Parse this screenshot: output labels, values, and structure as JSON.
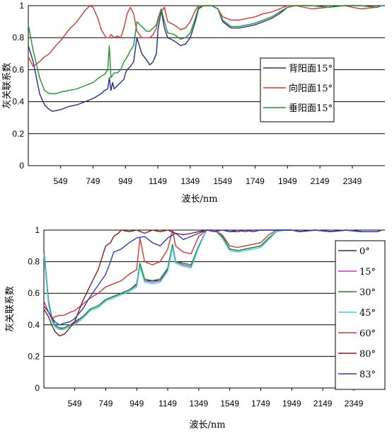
{
  "chart_data": [
    {
      "type": "line",
      "xlabel": "波长/nm",
      "ylabel": "灰关联系数",
      "xlim": [
        350,
        2550
      ],
      "ylim": [
        0,
        1
      ],
      "xticks": [
        "549",
        "749",
        "949",
        "1149",
        "1349",
        "1549",
        "1749",
        "1949",
        "2149",
        "2349"
      ],
      "yticks": [
        "0",
        "0.2",
        "0.4",
        "0.6",
        "0.8",
        "1"
      ],
      "grid": true,
      "legend": "center-right",
      "series": [
        {
          "name": "背阳面15°",
          "color": "#1f2e8f",
          "x": [
            350,
            380,
            420,
            450,
            480,
            500,
            549,
            600,
            650,
            700,
            750,
            800,
            820,
            840,
            850,
            860,
            870,
            880,
            900,
            920,
            940,
            950,
            960,
            980,
            1000,
            1020,
            1050,
            1080,
            1100,
            1120,
            1140,
            1150,
            1170,
            1190,
            1210,
            1250,
            1290,
            1320,
            1349,
            1380,
            1400,
            1430,
            1480,
            1520,
            1549,
            1600,
            1650,
            1700,
            1749,
            1800,
            1850,
            1900,
            1949,
            2000,
            2100,
            2200,
            2300,
            2400,
            2500,
            2530
          ],
          "y": [
            0.75,
            0.65,
            0.45,
            0.38,
            0.35,
            0.34,
            0.35,
            0.37,
            0.38,
            0.4,
            0.42,
            0.45,
            0.47,
            0.48,
            0.55,
            0.47,
            0.52,
            0.48,
            0.5,
            0.52,
            0.54,
            0.58,
            0.6,
            0.62,
            0.65,
            0.8,
            0.7,
            0.66,
            0.63,
            0.65,
            0.7,
            0.85,
            0.97,
            0.86,
            0.8,
            0.78,
            0.75,
            0.76,
            0.8,
            0.9,
            0.98,
            1.0,
            1.0,
            0.98,
            0.9,
            0.86,
            0.86,
            0.87,
            0.88,
            0.9,
            0.92,
            0.95,
            0.99,
            1.0,
            1.0,
            0.99,
            1.0,
            1.0,
            0.99,
            1.0
          ]
        },
        {
          "name": "向阳面15°",
          "color": "#e8322c",
          "x": [
            350,
            380,
            420,
            450,
            480,
            520,
            549,
            600,
            650,
            700,
            730,
            749,
            780,
            800,
            830,
            850,
            860,
            880,
            900,
            920,
            940,
            960,
            980,
            1000,
            1020,
            1050,
            1080,
            1100,
            1120,
            1140,
            1160,
            1190,
            1210,
            1250,
            1290,
            1320,
            1349,
            1380,
            1400,
            1430,
            1480,
            1520,
            1549,
            1600,
            1650,
            1700,
            1749,
            1800,
            1850,
            1900,
            1949,
            2000,
            2100,
            2200,
            2300,
            2400,
            2500,
            2530
          ],
          "y": [
            0.68,
            0.62,
            0.65,
            0.68,
            0.7,
            0.75,
            0.78,
            0.85,
            0.9,
            0.97,
            1.0,
            0.99,
            0.92,
            0.85,
            0.8,
            0.8,
            0.82,
            0.8,
            0.81,
            0.8,
            0.86,
            0.95,
            0.99,
            0.95,
            0.84,
            0.8,
            0.8,
            0.8,
            0.82,
            0.86,
            0.95,
            0.99,
            0.9,
            0.88,
            0.85,
            0.86,
            0.9,
            0.97,
            1.0,
            1.0,
            1.0,
            0.98,
            0.93,
            0.91,
            0.91,
            0.92,
            0.93,
            0.95,
            0.96,
            0.98,
            1.0,
            1.0,
            0.98,
            0.99,
            1.0,
            0.98,
            0.99,
            1.0
          ]
        },
        {
          "name": "垂阳面15°",
          "color": "#1a9a2a",
          "x": [
            350,
            380,
            420,
            450,
            480,
            520,
            549,
            600,
            650,
            700,
            750,
            800,
            820,
            840,
            850,
            860,
            880,
            900,
            920,
            940,
            960,
            980,
            1000,
            1020,
            1050,
            1080,
            1100,
            1120,
            1140,
            1150,
            1170,
            1190,
            1210,
            1250,
            1290,
            1320,
            1349,
            1380,
            1400,
            1430,
            1480,
            1520,
            1549,
            1600,
            1650,
            1700,
            1749,
            1800,
            1850,
            1900,
            1949,
            2000,
            2100,
            2200,
            2300,
            2400,
            2500,
            2530
          ],
          "y": [
            0.88,
            0.72,
            0.55,
            0.47,
            0.45,
            0.45,
            0.46,
            0.47,
            0.48,
            0.5,
            0.52,
            0.56,
            0.57,
            0.6,
            0.75,
            0.55,
            0.58,
            0.58,
            0.6,
            0.65,
            0.68,
            0.72,
            0.75,
            0.9,
            0.87,
            0.84,
            0.84,
            0.86,
            0.88,
            0.92,
            0.98,
            0.9,
            0.83,
            0.82,
            0.79,
            0.8,
            0.83,
            0.92,
            0.99,
            1.0,
            1.0,
            0.98,
            0.91,
            0.87,
            0.87,
            0.88,
            0.89,
            0.91,
            0.93,
            0.96,
            0.99,
            1.0,
            1.0,
            0.99,
            1.0,
            1.0,
            0.99,
            1.0
          ]
        }
      ]
    },
    {
      "type": "line",
      "xlabel": "波长/nm",
      "ylabel": "灰关联系数",
      "xlim": [
        350,
        2550
      ],
      "ylim": [
        0,
        1
      ],
      "xticks": [
        "549",
        "749",
        "949",
        "1149",
        "1349",
        "1549",
        "1749",
        "1949",
        "2149",
        "2349"
      ],
      "yticks": [
        "0",
        "0.2",
        "0.4",
        "0.6",
        "0.8",
        "1"
      ],
      "grid": true,
      "legend": "right",
      "series": [
        {
          "name": "0°",
          "color": "#1f2e6b",
          "x": [
            350,
            380,
            400,
            420,
            450,
            480,
            520,
            549,
            600,
            650,
            700,
            749,
            800,
            850,
            900,
            949,
            970,
            1000,
            1050,
            1100,
            1149,
            1180,
            1200,
            1250,
            1300,
            1349,
            1400,
            1450,
            1500,
            1549,
            1600,
            1650,
            1700,
            1749,
            1800,
            1850,
            1900,
            1949,
            2000,
            2100,
            2200,
            2300,
            2400,
            2500,
            2530
          ],
          "y": [
            0.88,
            0.55,
            0.45,
            0.4,
            0.38,
            0.38,
            0.4,
            0.41,
            0.45,
            0.5,
            0.52,
            0.56,
            0.58,
            0.6,
            0.62,
            0.65,
            0.78,
            0.68,
            0.68,
            0.68,
            0.75,
            0.9,
            0.8,
            0.78,
            0.77,
            0.9,
            1.0,
            1.0,
            0.96,
            0.88,
            0.87,
            0.88,
            0.89,
            0.9,
            0.95,
            0.99,
            1.0,
            1.0,
            0.99,
            1.0,
            0.99,
            1.0,
            0.99,
            0.99,
            1.0
          ]
        },
        {
          "name": "15°",
          "color": "#cc33cc",
          "x": [
            350,
            380,
            400,
            420,
            450,
            480,
            520,
            549,
            600,
            650,
            700,
            749,
            800,
            850,
            900,
            949,
            970,
            1000,
            1050,
            1100,
            1149,
            1180,
            1200,
            1250,
            1300,
            1349,
            1400,
            1450,
            1500,
            1549,
            1600,
            1650,
            1700,
            1749,
            1800,
            1850,
            1900,
            1949,
            2000,
            2100,
            2200,
            2300,
            2400,
            2500,
            2530
          ],
          "y": [
            0.87,
            0.54,
            0.44,
            0.39,
            0.37,
            0.38,
            0.4,
            0.41,
            0.45,
            0.5,
            0.52,
            0.56,
            0.58,
            0.6,
            0.62,
            0.65,
            0.78,
            0.68,
            0.67,
            0.68,
            0.75,
            0.9,
            0.8,
            0.78,
            0.77,
            0.9,
            1.0,
            1.0,
            0.96,
            0.88,
            0.87,
            0.88,
            0.89,
            0.9,
            0.95,
            0.99,
            1.0,
            1.0,
            0.99,
            1.0,
            0.99,
            1.0,
            0.99,
            0.99,
            1.0
          ]
        },
        {
          "name": "30°",
          "color": "#1a8a2a",
          "x": [
            350,
            380,
            400,
            420,
            450,
            480,
            520,
            549,
            600,
            650,
            700,
            749,
            800,
            850,
            900,
            949,
            970,
            1000,
            1050,
            1100,
            1149,
            1180,
            1200,
            1250,
            1300,
            1349,
            1400,
            1450,
            1500,
            1549,
            1600,
            1650,
            1700,
            1749,
            1800,
            1850,
            1900,
            1949,
            2000,
            2100,
            2200,
            2300,
            2400,
            2500,
            2530
          ],
          "y": [
            0.86,
            0.54,
            0.44,
            0.4,
            0.38,
            0.38,
            0.4,
            0.42,
            0.45,
            0.5,
            0.52,
            0.56,
            0.58,
            0.6,
            0.62,
            0.66,
            0.79,
            0.69,
            0.68,
            0.69,
            0.76,
            0.91,
            0.8,
            0.79,
            0.78,
            0.9,
            1.0,
            1.0,
            0.96,
            0.88,
            0.87,
            0.88,
            0.89,
            0.9,
            0.95,
            0.99,
            1.0,
            1.0,
            0.99,
            1.0,
            0.99,
            1.0,
            0.99,
            0.99,
            1.0
          ]
        },
        {
          "name": "45°",
          "color": "#33d6e0",
          "x": [
            350,
            380,
            400,
            420,
            450,
            480,
            520,
            549,
            600,
            650,
            700,
            749,
            800,
            850,
            900,
            949,
            970,
            1000,
            1050,
            1100,
            1149,
            1180,
            1200,
            1250,
            1300,
            1349,
            1400,
            1450,
            1500,
            1549,
            1600,
            1650,
            1700,
            1749,
            1800,
            1850,
            1900,
            1949,
            2000,
            2100,
            2200,
            2300,
            2400,
            2500,
            2530
          ],
          "y": [
            0.85,
            0.53,
            0.43,
            0.39,
            0.37,
            0.37,
            0.39,
            0.4,
            0.44,
            0.49,
            0.51,
            0.55,
            0.57,
            0.59,
            0.61,
            0.64,
            0.77,
            0.67,
            0.66,
            0.67,
            0.74,
            0.89,
            0.79,
            0.77,
            0.76,
            0.89,
            1.0,
            1.0,
            0.95,
            0.87,
            0.86,
            0.87,
            0.88,
            0.89,
            0.94,
            0.99,
            1.0,
            1.0,
            0.99,
            1.0,
            0.99,
            1.0,
            0.99,
            0.99,
            1.0
          ]
        },
        {
          "name": "60°",
          "color": "#e0322c",
          "x": [
            350,
            380,
            400,
            420,
            450,
            480,
            520,
            549,
            600,
            650,
            700,
            749,
            800,
            850,
            900,
            949,
            970,
            1000,
            1050,
            1100,
            1149,
            1180,
            1200,
            1250,
            1300,
            1349,
            1400,
            1450,
            1500,
            1549,
            1600,
            1650,
            1700,
            1749,
            1800,
            1850,
            1900,
            1949,
            2000,
            2100,
            2200,
            2300,
            2400,
            2500,
            2530
          ],
          "y": [
            0.55,
            0.48,
            0.44,
            0.45,
            0.46,
            0.46,
            0.48,
            0.49,
            0.53,
            0.57,
            0.6,
            0.64,
            0.66,
            0.68,
            0.72,
            0.75,
            0.95,
            0.8,
            0.78,
            0.8,
            0.88,
            1.0,
            0.9,
            0.86,
            0.85,
            0.96,
            1.0,
            1.0,
            0.97,
            0.9,
            0.89,
            0.9,
            0.91,
            0.92,
            0.97,
            1.0,
            1.0,
            1.0,
            0.99,
            1.0,
            0.99,
            1.0,
            0.99,
            0.99,
            1.0
          ]
        },
        {
          "name": "80°",
          "color": "#8b1a1a",
          "x": [
            350,
            380,
            400,
            420,
            450,
            480,
            500,
            549,
            600,
            650,
            700,
            749,
            780,
            800,
            830,
            849,
            900,
            949,
            1000,
            1050,
            1100,
            1149,
            1200,
            1250,
            1300,
            1349,
            1400,
            1450,
            1500,
            1549,
            1600,
            1650,
            1700,
            1749,
            1800,
            1850,
            1900,
            1949,
            2000,
            2100,
            2200,
            2300,
            2400,
            2500,
            2530
          ],
          "y": [
            0.5,
            0.45,
            0.4,
            0.36,
            0.33,
            0.34,
            0.36,
            0.42,
            0.55,
            0.65,
            0.75,
            0.9,
            0.92,
            0.96,
            0.98,
            1.0,
            0.99,
            1.0,
            0.98,
            1.0,
            0.99,
            1.0,
            0.98,
            0.97,
            0.98,
            0.99,
            1.0,
            0.99,
            1.0,
            0.99,
            0.99,
            1.0,
            0.99,
            1.0,
            1.0,
            1.0,
            1.0,
            1.0,
            0.99,
            1.0,
            0.99,
            1.0,
            0.99,
            0.99,
            1.0
          ]
        },
        {
          "name": "83°",
          "color": "#2a3cdc",
          "x": [
            350,
            380,
            400,
            420,
            450,
            480,
            520,
            549,
            600,
            650,
            700,
            749,
            780,
            800,
            849,
            900,
            949,
            1000,
            1050,
            1100,
            1149,
            1200,
            1250,
            1300,
            1349,
            1400,
            1450,
            1500,
            1549,
            1600,
            1650,
            1700,
            1749,
            1800,
            1850,
            1900,
            1949,
            2000,
            2100,
            2200,
            2300,
            2400,
            2500,
            2530
          ],
          "y": [
            0.52,
            0.48,
            0.45,
            0.42,
            0.4,
            0.41,
            0.42,
            0.44,
            0.5,
            0.58,
            0.65,
            0.72,
            0.8,
            0.86,
            0.88,
            0.92,
            0.95,
            0.96,
            0.92,
            0.9,
            0.95,
            0.98,
            0.94,
            0.96,
            0.98,
            1.0,
            0.99,
            1.0,
            0.99,
            1.0,
            0.99,
            1.0,
            1.0,
            1.0,
            1.0,
            1.0,
            1.0,
            0.99,
            1.0,
            0.99,
            1.0,
            0.99,
            0.99,
            1.0
          ]
        }
      ]
    }
  ]
}
